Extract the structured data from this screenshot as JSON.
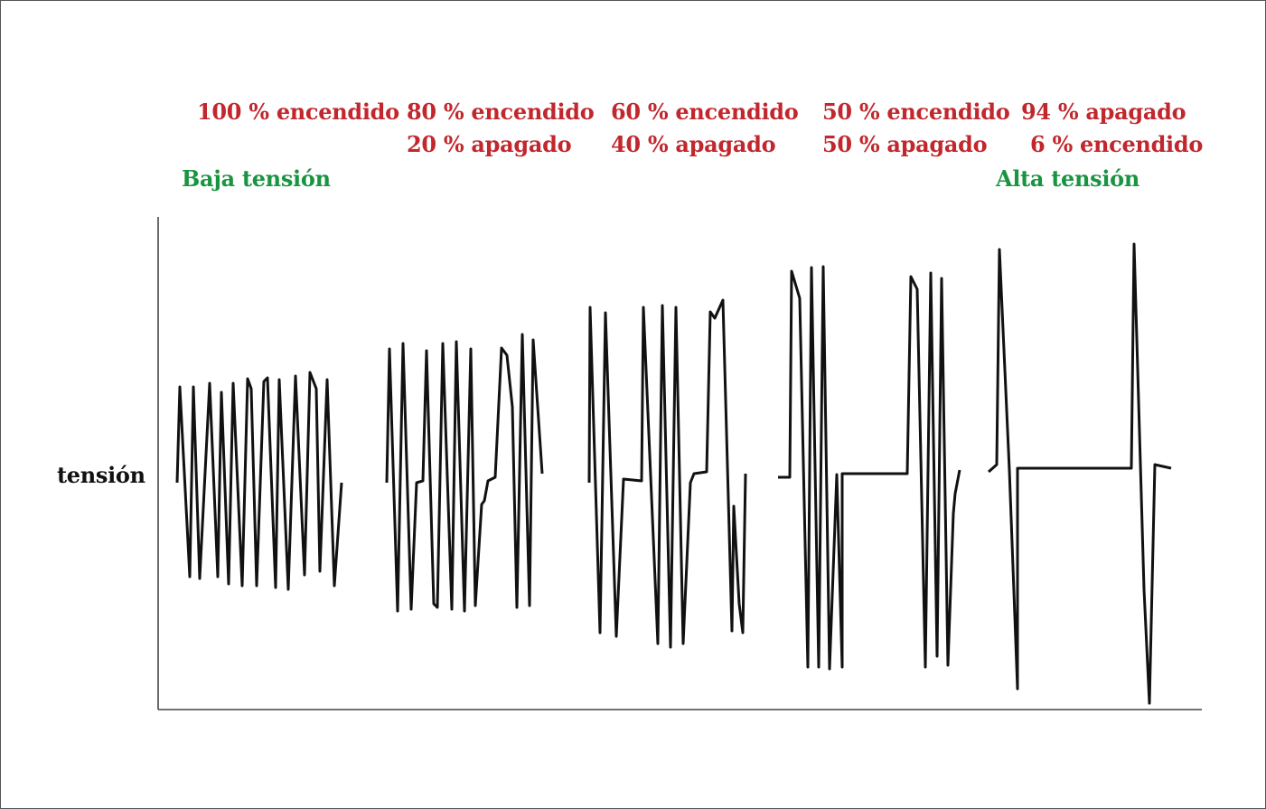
{
  "colors": {
    "duty_label": "#c1272d",
    "voltage_label": "#1a9441",
    "axis": "#444444",
    "waveform": "#111111"
  },
  "labels": {
    "duty": [
      {
        "on": "100 % encendido",
        "off": ""
      },
      {
        "on": "80 % encendido",
        "off": "20 % apagado"
      },
      {
        "on": "60 % encendido",
        "off": "40 % apagado"
      },
      {
        "on": "50 % encendido",
        "off": "50 % apagado"
      },
      {
        "on": "94 % apagado",
        "off": "6 % encendido"
      }
    ],
    "low_voltage": "Baja tensión",
    "high_voltage": "Alta tensión",
    "y_axis": "tensión"
  }
}
